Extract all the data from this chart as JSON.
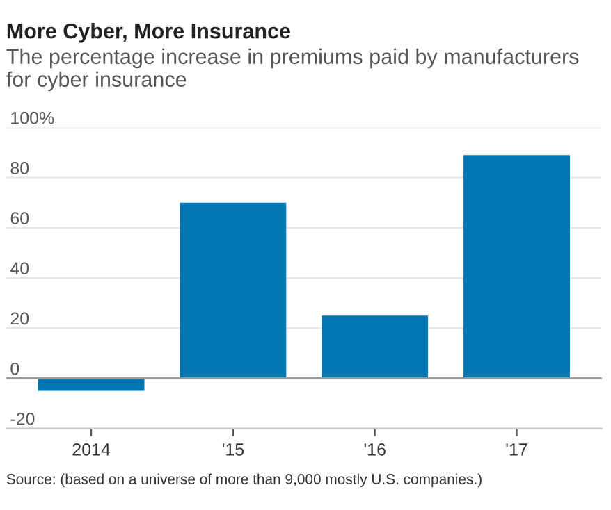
{
  "chart_data": {
    "type": "bar",
    "title": "More Cyber, More Insurance",
    "subtitle": "The percentage increase in premiums paid by manufacturers for cyber insurance",
    "categories": [
      "2014",
      "'15",
      "'16",
      "'17"
    ],
    "values": [
      -5,
      70,
      25,
      89
    ],
    "color": "#0077b0",
    "ylim": [
      -20,
      100
    ],
    "yticks": [
      -20,
      0,
      20,
      40,
      60,
      80,
      {
        "value": 100,
        "label": "100%"
      }
    ],
    "grid": "y",
    "ref_lines": [
      {
        "axis": "y",
        "value": 0,
        "color": "#999999"
      }
    ],
    "annotations": [
      "Source: (based on a universe of more than 9,000 mostly U.S. companies.)"
    ]
  }
}
